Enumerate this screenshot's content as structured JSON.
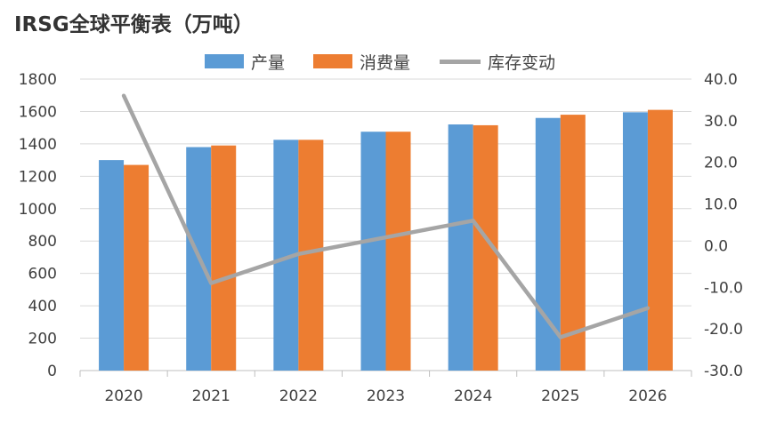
{
  "title": "IRSG全球平衡表（万吨）",
  "colors": {
    "production": "#5B9BD5",
    "consumption": "#ED7D31",
    "inventory": "#A5A5A5",
    "grid": "#D9D9D9",
    "axis_text": "#404040"
  },
  "chart_data": {
    "type": "bar",
    "title": "IRSG全球平衡表（万吨）",
    "categories": [
      "2020",
      "2021",
      "2022",
      "2023",
      "2024",
      "2025",
      "2026"
    ],
    "series": [
      {
        "name": "产量",
        "kind": "bar",
        "axis": "left",
        "values": [
          1300,
          1380,
          1425,
          1475,
          1520,
          1560,
          1595
        ]
      },
      {
        "name": "消费量",
        "kind": "bar",
        "axis": "left",
        "values": [
          1270,
          1390,
          1425,
          1475,
          1515,
          1580,
          1610
        ]
      },
      {
        "name": "库存变动",
        "kind": "line",
        "axis": "right",
        "values": [
          36.0,
          -9.0,
          -2.0,
          2.0,
          6.0,
          -22.0,
          -15.0
        ]
      }
    ],
    "y_left": {
      "min": 0,
      "max": 1800,
      "step": 200,
      "ticks": [
        "0",
        "200",
        "400",
        "600",
        "800",
        "1000",
        "1200",
        "1400",
        "1600",
        "1800"
      ]
    },
    "y_right": {
      "min": -30,
      "max": 40,
      "step": 10,
      "ticks": [
        "-30.0",
        "-20.0",
        "-10.0",
        "0.0",
        "10.0",
        "20.0",
        "30.0",
        "40.0"
      ]
    },
    "grid": true,
    "legend": "top-center",
    "xlabel": "",
    "ylabel": ""
  }
}
